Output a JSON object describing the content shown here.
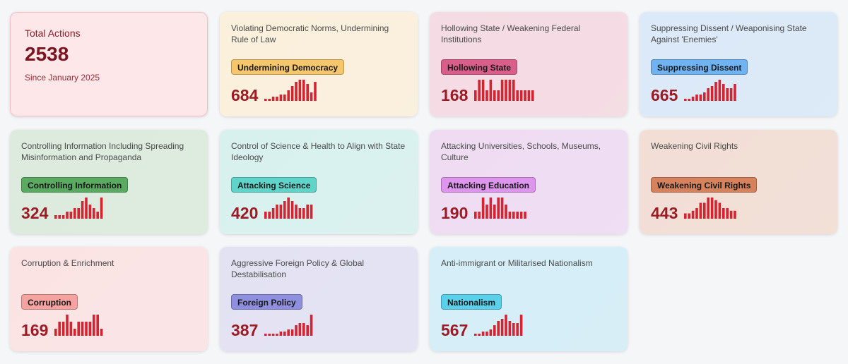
{
  "summary": {
    "label": "Total Actions",
    "value": "2538",
    "subtitle": "Since January 2025",
    "bg": "#fde7e9"
  },
  "categories": [
    {
      "title": "Violating Democratic Norms, Undermining Rule of Law",
      "badge": "Undermining Democracy",
      "count": "684",
      "badge_color": "#f6c66d",
      "bg": "#fbf0dc",
      "spark": [
        1,
        1,
        2,
        2,
        3,
        3,
        5,
        7,
        9,
        10,
        10,
        8,
        4,
        9
      ]
    },
    {
      "title": "Hollowing State / Weakening Federal Institutions",
      "badge": "Hollowing State",
      "count": "168",
      "badge_color": "#d95f8a",
      "bg": "#f5dbe3",
      "spark": [
        1,
        2,
        2,
        1,
        2,
        1,
        1,
        2,
        2,
        2,
        2,
        1,
        1,
        1,
        1,
        1
      ]
    },
    {
      "title": "Suppressing Dissent / Weaponising State Against 'Enemies'",
      "badge": "Suppressing Dissent",
      "count": "665",
      "badge_color": "#6fb3f2",
      "bg": "#dbe9f8",
      "spark": [
        1,
        1,
        2,
        3,
        3,
        4,
        6,
        7,
        9,
        10,
        8,
        6,
        6,
        8
      ]
    },
    {
      "title": "Controlling Information Including Spreading Misinformation and Propaganda",
      "badge": "Controlling Information",
      "count": "324",
      "badge_color": "#5aaa62",
      "bg": "#dcebdd",
      "spark": [
        1,
        1,
        1,
        2,
        2,
        3,
        3,
        5,
        6,
        4,
        3,
        2,
        6
      ]
    },
    {
      "title": "Control of Science & Health to Align with State Ideology",
      "badge": "Attacking Science",
      "count": "420",
      "badge_color": "#5fd4c9",
      "bg": "#d8f1ef",
      "spark": [
        2,
        2,
        3,
        4,
        4,
        5,
        6,
        5,
        4,
        3,
        3,
        4,
        4
      ]
    },
    {
      "title": "Attacking Universities, Schools, Museums, Culture",
      "badge": "Attacking Education",
      "count": "190",
      "badge_color": "#dd95ee",
      "bg": "#efdcf3",
      "spark": [
        1,
        1,
        3,
        2,
        3,
        2,
        3,
        3,
        2,
        1,
        1,
        1,
        1,
        1
      ]
    },
    {
      "title": "Weakening Civil Rights",
      "badge": "Weakening Civil Rights",
      "count": "443",
      "badge_color": "#d5825d",
      "bg": "#f2ded5",
      "spark": [
        2,
        2,
        3,
        4,
        6,
        6,
        8,
        8,
        7,
        6,
        4,
        4,
        3,
        3
      ]
    },
    {
      "title": "Corruption & Enrichment",
      "badge": "Corruption",
      "count": "169",
      "badge_color": "#f5a3a1",
      "bg": "#fbe3e4",
      "spark": [
        1,
        2,
        2,
        3,
        2,
        1,
        2,
        2,
        2,
        2,
        3,
        3,
        1
      ]
    },
    {
      "title": "Aggressive Foreign Policy & Global Destabilisation",
      "badge": "Foreign Policy",
      "count": "387",
      "badge_color": "#8f8fe0",
      "bg": "#e3e2f3",
      "spark": [
        1,
        1,
        1,
        1,
        2,
        2,
        3,
        3,
        5,
        6,
        6,
        5,
        10
      ]
    },
    {
      "title": "Anti-immigrant or Militarised Nationalism",
      "badge": "Nationalism",
      "count": "567",
      "badge_color": "#5ad0ea",
      "bg": "#d5eef7",
      "spark": [
        1,
        1,
        2,
        2,
        3,
        5,
        7,
        8,
        10,
        7,
        6,
        6,
        10
      ]
    }
  ],
  "spark_color": "#d42431"
}
